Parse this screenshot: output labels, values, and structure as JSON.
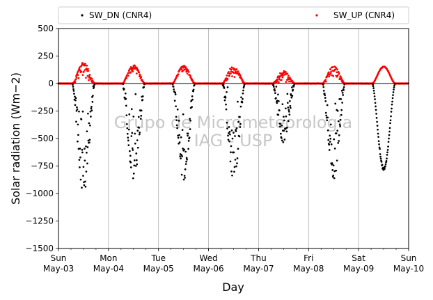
{
  "chart_data": {
    "type": "scatter",
    "title": "",
    "xlabel": "Day",
    "ylabel": "Solar radiation (Wm−2)",
    "ylim": [
      -1500,
      500
    ],
    "yticks": [
      500,
      250,
      0,
      -250,
      -500,
      -750,
      -1000,
      -1250,
      -1500
    ],
    "ytick_labels": [
      "500",
      "250",
      "0",
      "−250",
      "−500",
      "−750",
      "−1000",
      "−1250",
      "−1500"
    ],
    "xlim": [
      "2020-05-03",
      "2020-05-10"
    ],
    "xticks": [
      {
        "date": "2020-05-03",
        "day": "Sun",
        "date_label": "May-03"
      },
      {
        "date": "2020-05-04",
        "day": "Mon",
        "date_label": "May-04"
      },
      {
        "date": "2020-05-05",
        "day": "Tue",
        "date_label": "May-05"
      },
      {
        "date": "2020-05-06",
        "day": "Wed",
        "date_label": "May-06"
      },
      {
        "date": "2020-05-07",
        "day": "Thu",
        "date_label": "May-07"
      },
      {
        "date": "2020-05-08",
        "day": "Fri",
        "date_label": "May-08"
      },
      {
        "date": "2020-05-09",
        "day": "Sat",
        "date_label": "May-09"
      },
      {
        "date": "2020-05-10",
        "day": "Sun",
        "date_label": "May-10"
      }
    ],
    "grid": "vertical",
    "legend": "top",
    "watermark": [
      "Grupo de Micrometeorologia",
      "IAG - USP"
    ],
    "series": [
      {
        "name": "SW_DN (CNR4)",
        "color": "#000000",
        "marker": "dot",
        "daily_profile": [
          {
            "date": "2020-05-03",
            "peak": -1000,
            "noise": 0.55
          },
          {
            "date": "2020-05-04",
            "peak": -880,
            "noise": 0.5
          },
          {
            "date": "2020-05-05",
            "peak": -890,
            "noise": 0.35
          },
          {
            "date": "2020-05-06",
            "peak": -870,
            "noise": 0.5
          },
          {
            "date": "2020-05-07",
            "peak": -540,
            "noise": 0.55
          },
          {
            "date": "2020-05-08",
            "peak": -870,
            "noise": 0.5
          },
          {
            "date": "2020-05-09",
            "peak": -790,
            "noise": 0.02
          }
        ]
      },
      {
        "name": "SW_UP (CNR4)",
        "color": "#ff0000",
        "marker": "dot",
        "daily_profile": [
          {
            "date": "2020-05-03",
            "peak": 195,
            "noise": 0.5
          },
          {
            "date": "2020-05-04",
            "peak": 170,
            "noise": 0.25
          },
          {
            "date": "2020-05-05",
            "peak": 165,
            "noise": 0.2
          },
          {
            "date": "2020-05-06",
            "peak": 165,
            "noise": 0.35
          },
          {
            "date": "2020-05-07",
            "peak": 115,
            "noise": 0.5
          },
          {
            "date": "2020-05-08",
            "peak": 160,
            "noise": 0.45
          },
          {
            "date": "2020-05-09",
            "peak": 155,
            "noise": 0.02
          }
        ]
      }
    ]
  }
}
